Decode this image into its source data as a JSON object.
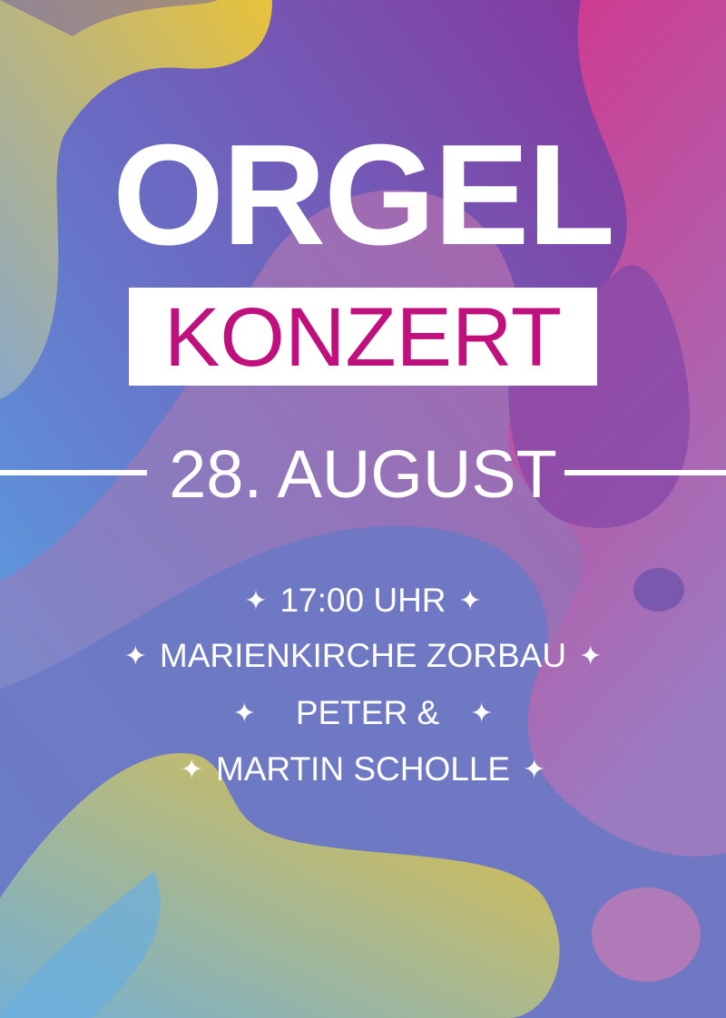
{
  "poster": {
    "title": "ORGEL",
    "subtitle": "KONZERT",
    "date": "28. AUGUST",
    "details": [
      "17:00 UHR",
      "MARIENKIRCHE ZORBAU",
      "PETER &",
      "MARTIN SCHOLLE"
    ],
    "star_glyph": "✦",
    "colors": {
      "accent": "#c0107e",
      "purple": "#7b3fa0",
      "pink": "#d23c8c",
      "blue": "#58aee8",
      "yellow": "#e6c23c"
    }
  }
}
